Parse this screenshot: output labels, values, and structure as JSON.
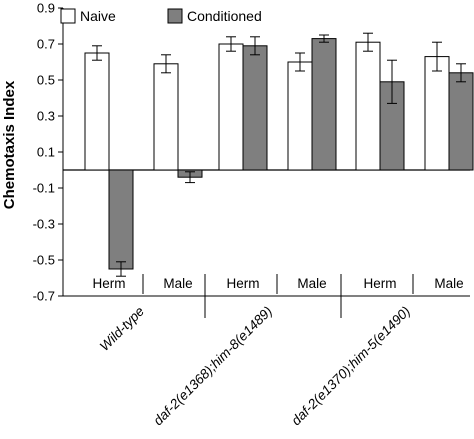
{
  "chart_data": {
    "type": "bar",
    "ylabel": "Chemotaxis Index",
    "xlabel": "",
    "title": "",
    "ylim": [
      -0.7,
      0.9
    ],
    "yticks": [
      0.9,
      0.7,
      0.5,
      0.3,
      0.1,
      -0.1,
      -0.3,
      -0.5,
      -0.7
    ],
    "ytick_labels": [
      "0.9",
      "0.7",
      "0.5",
      "0.3",
      "0.1",
      "-0.1",
      "-0.3",
      "-0.5",
      "-0.7"
    ],
    "legend": {
      "placement": "top-left",
      "entries": [
        "Naive",
        "Conditioned"
      ]
    },
    "colors": {
      "Naive": "#ffffff",
      "Conditioned": "#7f7f7f"
    },
    "groups": [
      {
        "label": "Wild-type",
        "subgroups": [
          {
            "label": "Herm",
            "naive": 0.65,
            "naive_err": 0.04,
            "conditioned": -0.55,
            "conditioned_err": 0.04
          },
          {
            "label": "Male",
            "naive": 0.59,
            "naive_err": 0.05,
            "conditioned": -0.04,
            "conditioned_err": 0.03
          }
        ]
      },
      {
        "label": "daf-2(e1368);him-8(e1489)",
        "subgroups": [
          {
            "label": "Herm",
            "naive": 0.7,
            "naive_err": 0.04,
            "conditioned": 0.69,
            "conditioned_err": 0.05
          },
          {
            "label": "Male",
            "naive": 0.6,
            "naive_err": 0.05,
            "conditioned": 0.73,
            "conditioned_err": 0.02
          }
        ]
      },
      {
        "label": "daf-2(e1370);him-5(e1490)",
        "subgroups": [
          {
            "label": "Herm",
            "naive": 0.71,
            "naive_err": 0.05,
            "conditioned": 0.49,
            "conditioned_err": 0.12
          },
          {
            "label": "Male",
            "naive": 0.63,
            "naive_err": 0.08,
            "conditioned": 0.54,
            "conditioned_err": 0.05
          }
        ]
      }
    ]
  }
}
